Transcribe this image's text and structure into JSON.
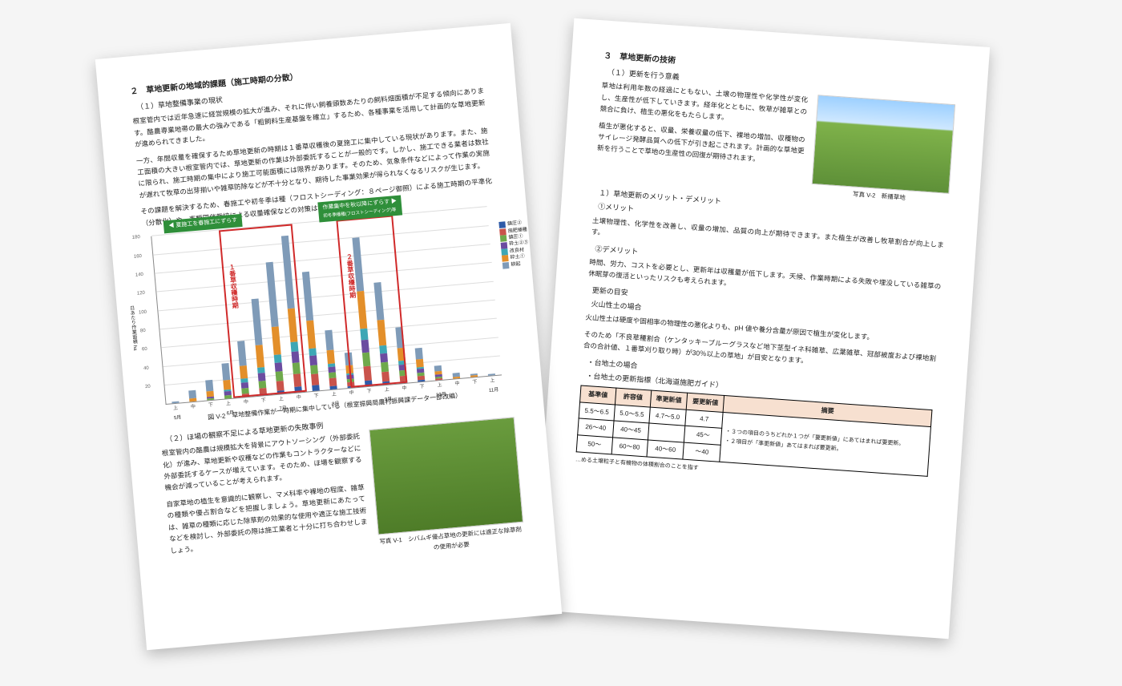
{
  "chart": {
    "type": "stacked-bar",
    "y_max": 180,
    "x_labels": [
      "上",
      "中",
      "下",
      "上",
      "中",
      "下",
      "上",
      "中",
      "下",
      "上",
      "中",
      "下",
      "上",
      "中",
      "下",
      "上",
      "中",
      "下",
      "上"
    ],
    "month_labels": [
      "5月",
      "",
      "",
      "6月",
      "",
      "",
      "7月",
      "",
      "",
      "8月",
      "",
      "",
      "9月",
      "",
      "",
      "10月",
      "",
      "",
      "11月"
    ],
    "grid_step": 20,
    "series": [
      {
        "name": "鎮圧②",
        "color": "#2e5aa8"
      },
      {
        "name": "施肥播種",
        "color": "#c9534b"
      },
      {
        "name": "鎮圧①",
        "color": "#6fa94b"
      },
      {
        "name": "砕土②③",
        "color": "#6b4ca0"
      },
      {
        "name": "改良材",
        "color": "#3ea7b5"
      },
      {
        "name": "砕土①",
        "color": "#e38f2a"
      },
      {
        "name": "耕起",
        "color": "#7f9bb8"
      }
    ],
    "stacks": [
      [
        0,
        0,
        0,
        0,
        0,
        0,
        2
      ],
      [
        0,
        0,
        0,
        0,
        0,
        4,
        8
      ],
      [
        0,
        0,
        2,
        2,
        0,
        6,
        12
      ],
      [
        0,
        0,
        4,
        4,
        2,
        10,
        18
      ],
      [
        0,
        4,
        6,
        6,
        4,
        14,
        26
      ],
      [
        2,
        6,
        8,
        8,
        6,
        24,
        50
      ],
      [
        4,
        10,
        10,
        10,
        8,
        30,
        70
      ],
      [
        6,
        14,
        12,
        12,
        10,
        36,
        78
      ],
      [
        6,
        12,
        10,
        10,
        8,
        30,
        52
      ],
      [
        4,
        8,
        6,
        6,
        4,
        14,
        22
      ],
      [
        2,
        4,
        4,
        4,
        2,
        8,
        14
      ],
      [
        6,
        16,
        14,
        14,
        12,
        40,
        58
      ],
      [
        4,
        10,
        10,
        10,
        8,
        28,
        40
      ],
      [
        2,
        6,
        6,
        6,
        4,
        14,
        22
      ],
      [
        2,
        4,
        4,
        4,
        2,
        8,
        12
      ],
      [
        0,
        2,
        2,
        2,
        0,
        4,
        6
      ],
      [
        0,
        0,
        0,
        0,
        0,
        2,
        4
      ],
      [
        0,
        0,
        0,
        0,
        0,
        2,
        2
      ],
      [
        0,
        0,
        0,
        0,
        0,
        0,
        2
      ]
    ],
    "annotation_red1": {
      "left_pct": 20,
      "width_pct": 22,
      "top_pct": 0,
      "height_pct": 100,
      "vert_label": "１番草収穫時期",
      "color": "#d02a2a"
    },
    "annotation_red2": {
      "left_pct": 55,
      "width_pct": 17,
      "top_pct": 0,
      "height_pct": 100,
      "vert_label": "２番草収穫時期",
      "color": "#d02a2a"
    },
    "banner_left": {
      "text": "夏施工を春施工にずらす",
      "bg": "#2f8f3a",
      "arrow": "left"
    },
    "banner_right": {
      "text": "作業集中を秋以降にずらす",
      "sub": "初冬季播種(フロストシーディング)等",
      "bg": "#2f8f3a",
      "arrow": "right"
    },
    "y_axis_label": "日あたり作業面積 ha"
  },
  "left": {
    "h2": "２　草地更新の地域的課題（施工時期の分散）",
    "h3a": "（１）草地整備事業の現状",
    "p1": "根室管内では近年急速に経営規模の拡大が進み、それに伴い飼養頭数あたりの飼料畑面積が不足する傾向にあります。酪農専業地帯の最大の強みである「粗飼料生産基盤を確立」するため、各種事業を活用して計画的な草地更新が進められてきました。",
    "p2": "一方、年間収量を確保するため草地更新の時期は１番草収穫後の夏施工に集中している現状があります。また、施工面積の大きい根室管内では、草地更新の作業は外部委託することが一般的です。しかし、施工できる業者は数社に限られ、施工時期の集中により施工可能面積には限界があります。そのため、気象条件などによって作業の実施が遅れて牧草の出芽揃いや雑草防除などが不十分となり、期待した事業効果が得られなくなるリスクが生じます。",
    "p3": "その課題を解決するため、春施工や初冬季は種（フロストシーディング：８ページ御照）による施工時期の平準化（分散化）や、麦類同伴栽培による収量確保などの対策は検討の余地があります。",
    "fig_caption": "図 V-2　草地整備作業が一時期に集中している（根室振興局農村振興課データ一部改編）",
    "h3b": "（２）ほ場の観察不足による草地更新の失敗事例",
    "p4": "根室管内の酪農は規模拡大を背景にアウトソーシング（外部委託化）が進み、草地更新や収穫などの作業もコントラクターなどに外部委託するケースが増えています。そのため、ほ場を観察する機会が減っていることが考えられます。",
    "p5": "自家草地の植生を意識的に観察し、マメ科率や裸地の程度、雑草の種類や優占割合などを把握しましょう。草地更新にあたっては、雑草の種類に応じた除草剤の効果的な使用や適正な施工技術などを検討し、外部委託の際は施工業者と十分に打ち合わせしましょう。",
    "photo1_caption": "写真 V-1　シバムギ優占草地の更新には適正な除草剤の使用が必要"
  },
  "right": {
    "h2": "３　草地更新の技術",
    "h3a": "（１）更新を行う意義",
    "p1": "草地は利用年数の経過にともない、土壌の物理性や化学性が変化し、生産性が低下していきます。経年化とともに、牧草が雑草との競合に負け、植生の悪化をもたらします。",
    "p2": "植生が悪化すると、収量、栄養収量の低下、裸地の増加、収穫物のサイレージ発酵品質への低下が引き起こされます。計画的な草地更新を行うことで草地の生産性の回復が期待されます。",
    "photo2_caption": "写真 V-2　新播草地",
    "h_merit": "１）草地更新のメリット・デメリット",
    "merit_h": "①メリット",
    "merit_p": "土壌物理性、化学性を改善し、収量の増加、品質の向上が期待できます。また植生が改善し牧草割合が向上します。",
    "demerit_h": "②デメリット",
    "demerit_p": "時間、労力、コストを必要とし、更新年は収穫量が低下します。天候、作業時期による失敗や埋没している雑草の休眠芽の復活といったリスクも考えられます。",
    "h_meyasu": "更新の目安",
    "sub_a": "火山性土の場合",
    "sub_a_p": "火山性土は硬度や固相率の物理性の悪化よりも、pH 値や養分含量が原因で植生が変化します。",
    "sub_a_p2": "そのため「不良草種割合（ケンタッキーブルーグラスなど地下茎型イネ科雑草、広葉雑草、冠部被度および裸地割合の合計値、１番草刈り取り時）が30％以上の草地」が目安となります。",
    "sub_b": "・台地土の場合",
    "table_caption": "・台地土の更新指標（北海道施肥ガイド）",
    "table": {
      "headers": [
        "基準値",
        "許容値",
        "準更新値",
        "要更新値",
        "摘要"
      ],
      "rows": [
        [
          "5.5～6.5",
          "5.0～5.5",
          "4.7～5.0",
          "4.7",
          "・３つの項目のうちどれか１つが「要更新値」にあてはまれば要更新。\n・２項目が「準更新値」あてはまれば要更新。"
        ],
        [
          "26～40",
          "40～45",
          "",
          "45～",
          ""
        ],
        [
          "50～",
          "60～80",
          "40～60",
          "～40",
          ""
        ]
      ],
      "first_col_implied": [
        "",
        "",
        "",
        ""
      ]
    },
    "footnote": "…める土壌粒子と有機物の体積割合のことを指す"
  }
}
